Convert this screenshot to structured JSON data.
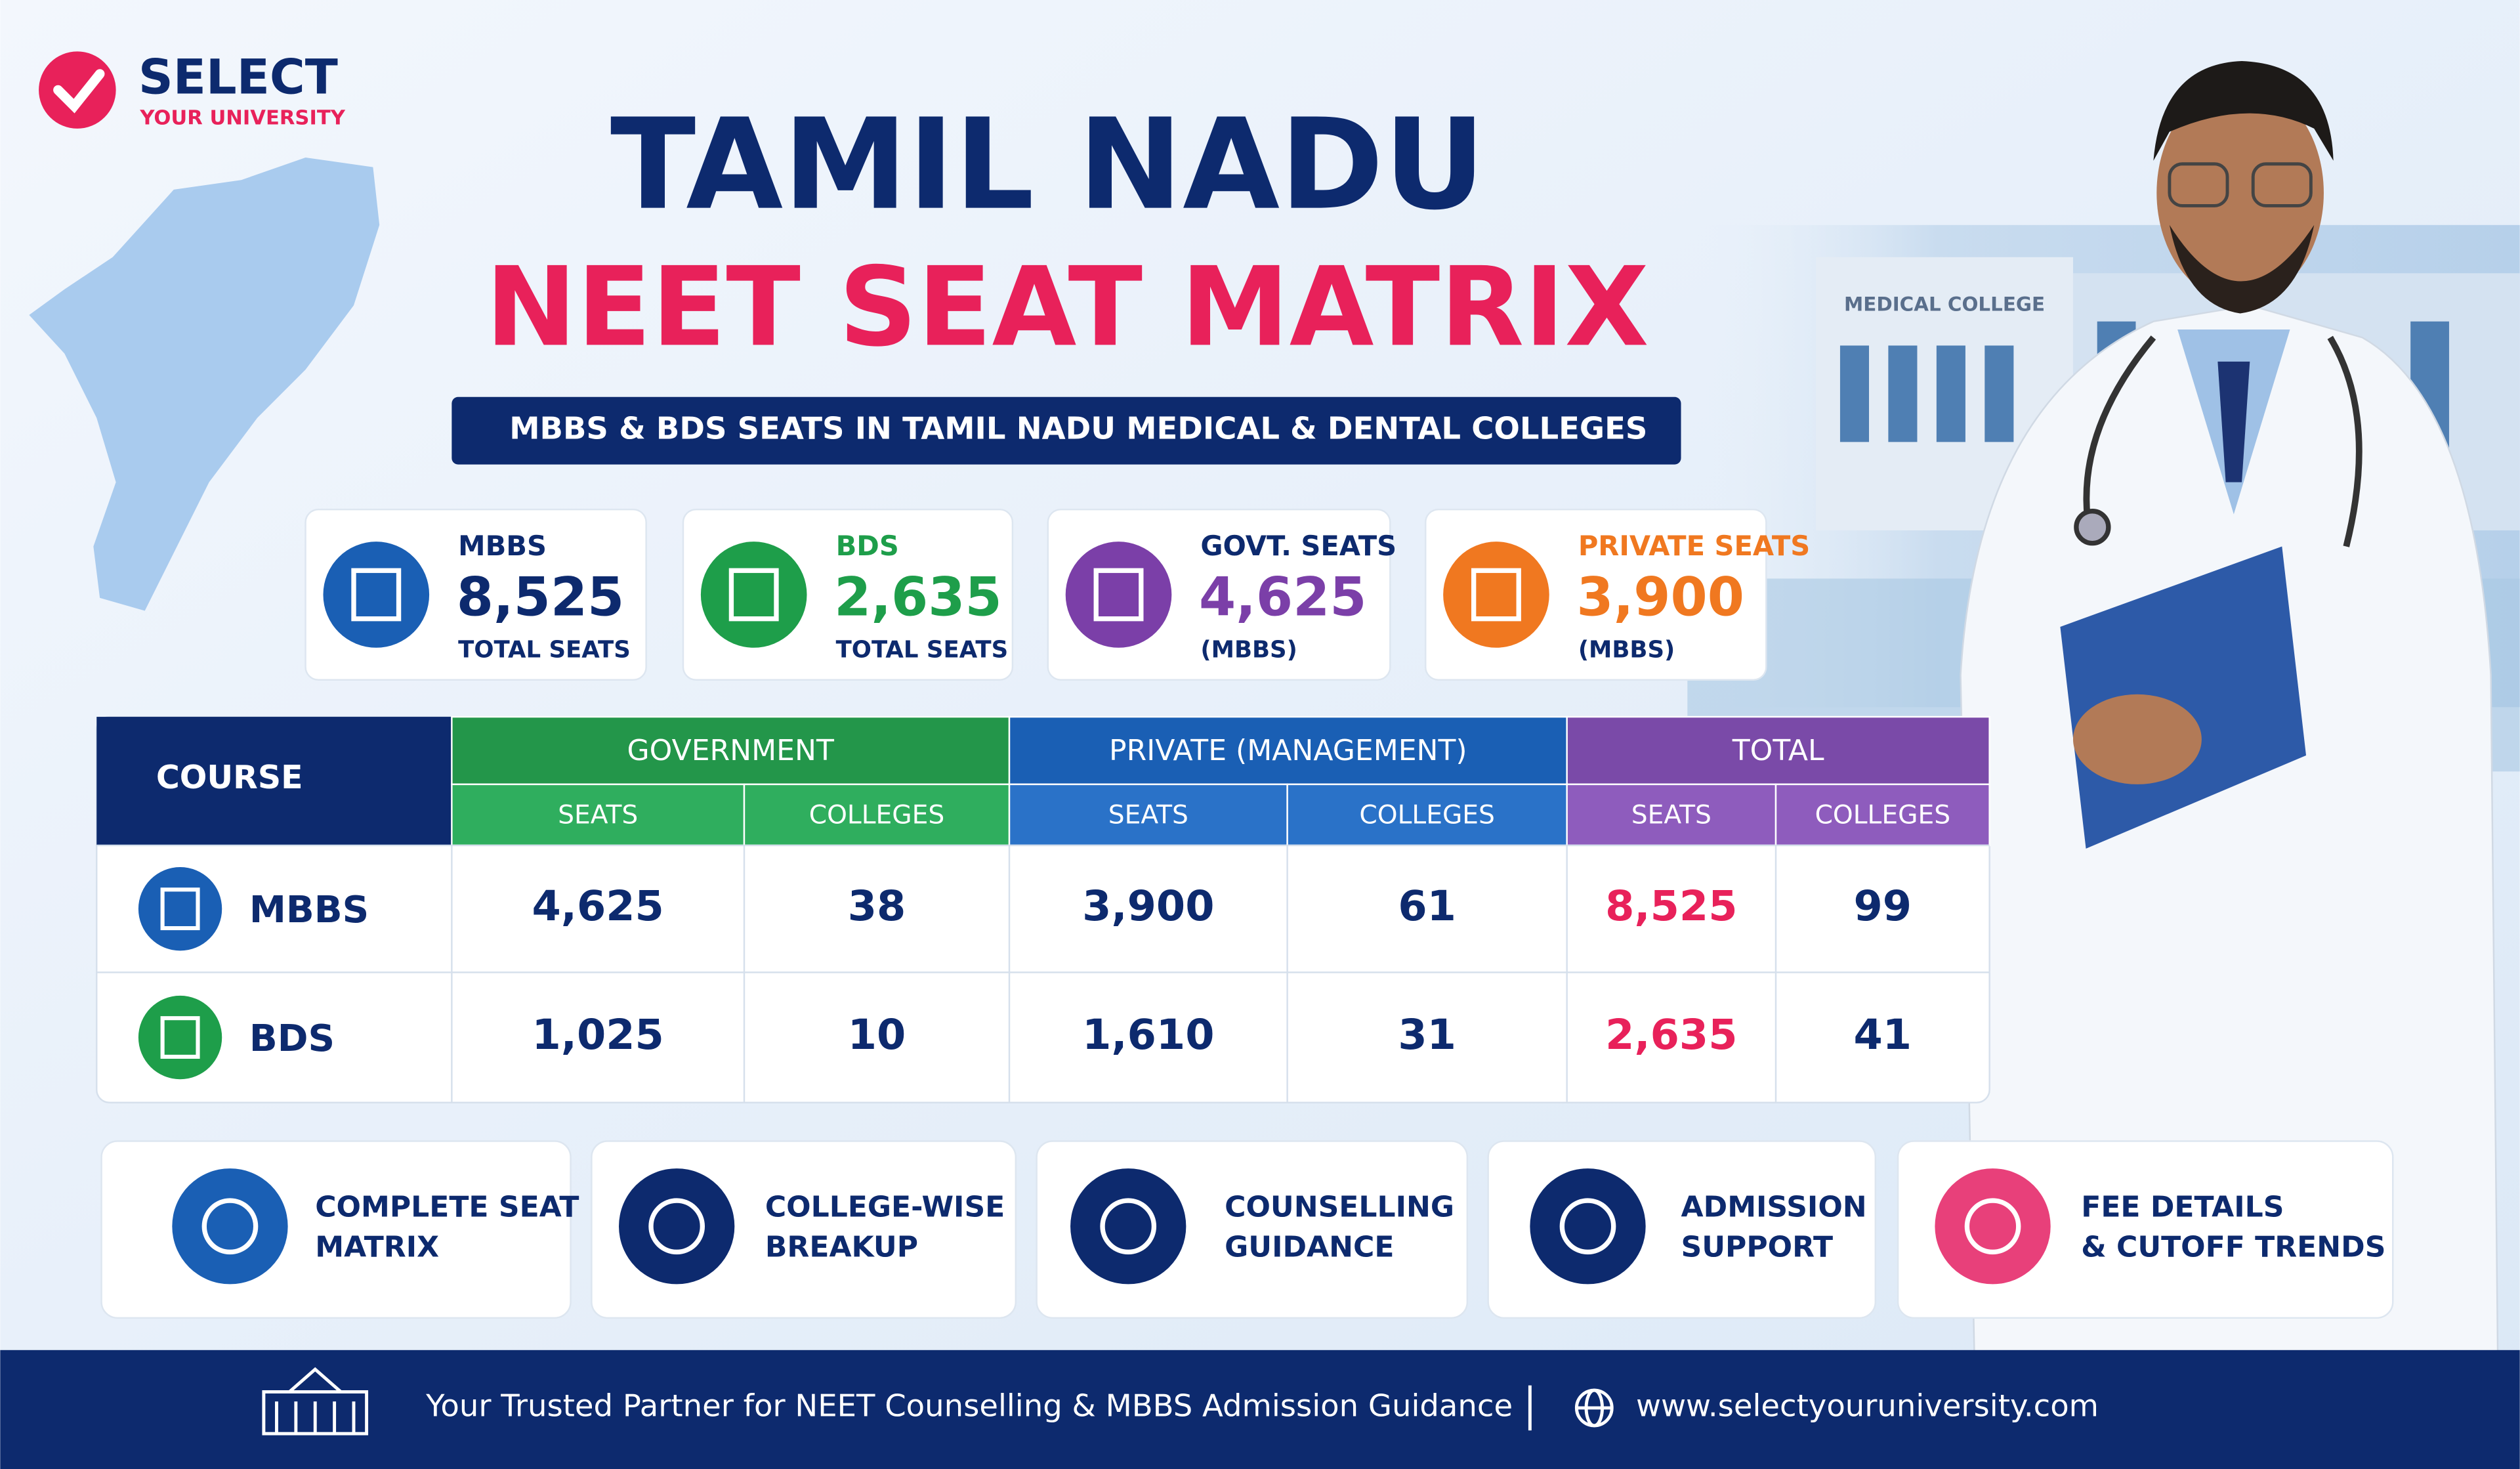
{
  "logo": {
    "name": "SELECT",
    "tagline": "YOUR UNIVERSITY"
  },
  "header": {
    "title_line1": "TAMIL NADU",
    "title_line2": "NEET SEAT MATRIX",
    "subtitle": "MBBS & BDS SEATS IN TAMIL NADU MEDICAL & DENTAL COLLEGES"
  },
  "building_sign": "MEDICAL COLLEGE",
  "stat_cards": [
    {
      "label": "MBBS",
      "value": "8,525",
      "caption": "TOTAL SEATS"
    },
    {
      "label": "BDS",
      "value": "2,635",
      "caption": "TOTAL SEATS"
    },
    {
      "label": "GOVT. SEATS",
      "value": "4,625",
      "caption": "(MBBS)"
    },
    {
      "label": "PRIVATE SEATS",
      "value": "3,900",
      "caption": "(MBBS)"
    }
  ],
  "table": {
    "course_header": "COURSE",
    "groups": [
      "GOVERNMENT",
      "PRIVATE (MANAGEMENT)",
      "TOTAL"
    ],
    "subheaders": [
      "SEATS",
      "COLLEGES",
      "SEATS",
      "COLLEGES",
      "SEATS",
      "COLLEGES"
    ],
    "rows": [
      [
        "MBBS",
        "4,625",
        "38",
        "3,900",
        "61",
        "8,525",
        "99"
      ],
      [
        "BDS",
        "1,025",
        "10",
        "1,610",
        "31",
        "2,635",
        "41"
      ]
    ]
  },
  "features": [
    {
      "lines": [
        "COMPLETE SEAT",
        "MATRIX"
      ]
    },
    {
      "lines": [
        "COLLEGE-WISE",
        "BREAKUP"
      ]
    },
    {
      "lines": [
        "COUNSELLING",
        "GUIDANCE"
      ]
    },
    {
      "lines": [
        "ADMISSION",
        "SUPPORT"
      ]
    },
    {
      "lines": [
        "FEE DETAILS",
        "& CUTOFF TRENDS"
      ]
    }
  ],
  "footer": {
    "tagline": "Your Trusted Partner for NEET Counselling & MBBS Admission Guidance",
    "website": "www.selectyouruniversity.com"
  }
}
